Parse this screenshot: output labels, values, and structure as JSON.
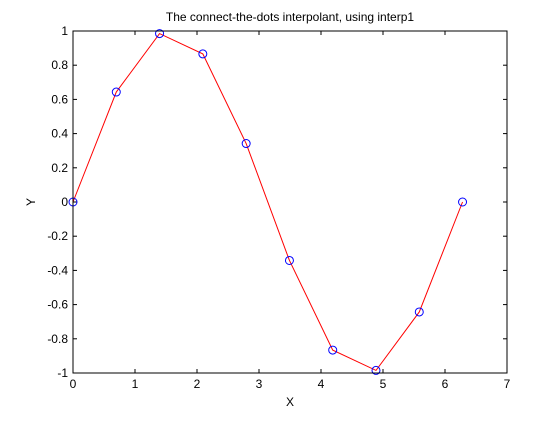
{
  "chart_data": {
    "type": "line",
    "title": "The connect-the-dots interpolant, using interp1",
    "xlabel": "X",
    "ylabel": "Y",
    "xlim": [
      0,
      7
    ],
    "ylim": [
      -1,
      1
    ],
    "xticks": [
      0,
      1,
      2,
      3,
      4,
      5,
      6,
      7
    ],
    "yticks": [
      -1,
      -0.8,
      -0.6,
      -0.4,
      -0.2,
      0,
      0.2,
      0.4,
      0.6,
      0.8,
      1
    ],
    "xtick_labels": [
      "0",
      "1",
      "2",
      "3",
      "4",
      "5",
      "6",
      "7"
    ],
    "ytick_labels": [
      "-1",
      "-0.8",
      "-0.6",
      "-0.4",
      "-0.2",
      "0",
      "0.2",
      "0.4",
      "0.6",
      "0.8",
      "1"
    ],
    "grid": false,
    "series": [
      {
        "marker": "circle",
        "line_color": "#ff0000",
        "marker_color": "#0000ff",
        "x": [
          0,
          0.698,
          1.396,
          2.094,
          2.793,
          3.491,
          4.189,
          4.887,
          5.585,
          6.283
        ],
        "y": [
          0,
          0.643,
          0.985,
          0.866,
          0.342,
          -0.342,
          -0.866,
          -0.985,
          -0.643,
          0
        ]
      }
    ]
  }
}
